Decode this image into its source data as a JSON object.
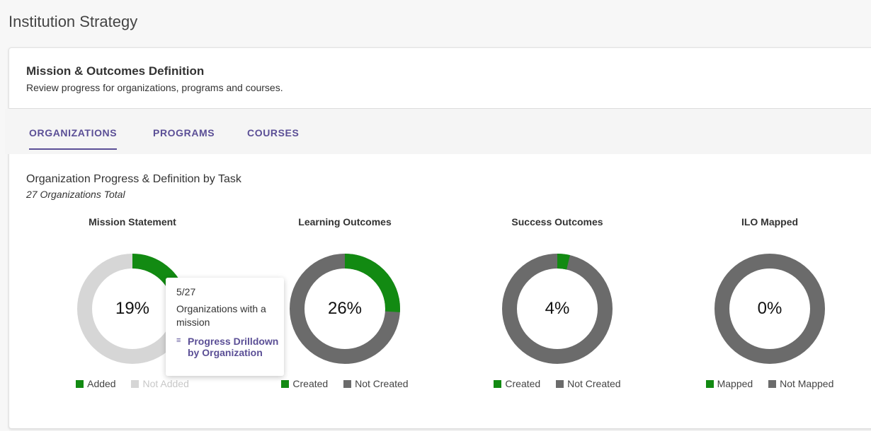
{
  "page_title": "Institution Strategy",
  "card": {
    "title": "Mission & Outcomes Definition",
    "subtitle": "Review progress for organizations, programs and courses."
  },
  "tabs": [
    {
      "label": "ORGANIZATIONS",
      "active": true
    },
    {
      "label": "PROGRAMS",
      "active": false
    },
    {
      "label": "COURSES",
      "active": false
    }
  ],
  "section": {
    "title": "Organization Progress & Definition by Task",
    "subtitle": "27 Organizations Total"
  },
  "colors": {
    "green": "#128a12",
    "dark_gray": "#6b6b6b",
    "light_gray": "#d6d6d6",
    "accent": "#5b4f96"
  },
  "charts": [
    {
      "title": "Mission Statement",
      "percent_label": "19%",
      "fraction": 0.1852,
      "remainder_color": "#d6d6d6",
      "legend": [
        {
          "label": "Added",
          "color": "#128a12",
          "muted": false
        },
        {
          "label": "Not Added",
          "color": "#d6d6d6",
          "muted": true
        }
      ]
    },
    {
      "title": "Learning Outcomes",
      "percent_label": "26%",
      "fraction": 0.26,
      "remainder_color": "#6b6b6b",
      "legend": [
        {
          "label": "Created",
          "color": "#128a12",
          "muted": false
        },
        {
          "label": "Not Created",
          "color": "#6b6b6b",
          "muted": false
        }
      ]
    },
    {
      "title": "Success Outcomes",
      "percent_label": "4%",
      "fraction": 0.037,
      "remainder_color": "#6b6b6b",
      "legend": [
        {
          "label": "Created",
          "color": "#128a12",
          "muted": false
        },
        {
          "label": "Not Created",
          "color": "#6b6b6b",
          "muted": false
        }
      ]
    },
    {
      "title": "ILO Mapped",
      "percent_label": "0%",
      "fraction": 0,
      "remainder_color": "#6b6b6b",
      "legend": [
        {
          "label": "Mapped",
          "color": "#128a12",
          "muted": false
        },
        {
          "label": "Not Mapped",
          "color": "#6b6b6b",
          "muted": false
        }
      ]
    }
  ],
  "tooltip": {
    "count": "5/27",
    "description": "Organizations with a mission",
    "link_label": "Progress Drilldown by Organization",
    "link_icon": "list-icon"
  }
}
